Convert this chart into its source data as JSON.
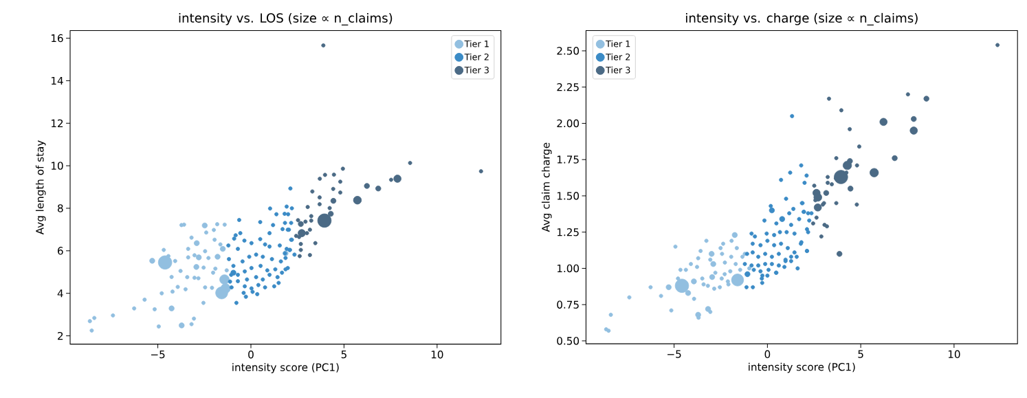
{
  "chart_data": [
    {
      "type": "bubble",
      "title": "intensity vs. LOS (size ∝ n_claims)",
      "xlabel": "intensity score (PC1)",
      "ylabel": "Avg length of stay",
      "xlim": [
        -9.71,
        13.43
      ],
      "ylim": [
        1.61,
        16.36
      ],
      "xticks": [
        {
          "value": -5,
          "label": "−5"
        },
        0,
        5,
        10
      ],
      "yticks": [
        2,
        4,
        6,
        8,
        10,
        12,
        14,
        16
      ],
      "legend": "top right",
      "series": [
        {
          "name": "Tier 1",
          "color": "#92bfe0",
          "x": [
            -8.65,
            -8.41,
            -8.55,
            -7.41,
            -6.27,
            -5.71,
            -5.17,
            -4.79,
            -4.95,
            -4.26,
            -3.72,
            -3.06,
            -3.19,
            -2.55,
            -5.3,
            -4.61,
            -4.68,
            -4.26,
            -3.93,
            -4.21,
            -3.78,
            -3.51,
            -3.73,
            -3.59,
            -3.37,
            -3.19,
            -2.91,
            -2.93,
            -2.8,
            -3.03,
            -2.54,
            -2.48,
            -2.4,
            -1.99,
            -1.81,
            -1.41,
            -2.46,
            -2.28,
            -1.95,
            -1.64,
            -1.51,
            -1.79,
            -3.42,
            -3.03,
            -2.82,
            -2.46,
            -2.09,
            -2.03,
            -1.57,
            -1.42,
            -1.36,
            -1.91,
            -1.3,
            -4.07,
            -4.43,
            -3.37,
            1.86
          ],
          "values": [
            2.69,
            2.84,
            2.25,
            2.96,
            3.29,
            3.7,
            3.25,
            4.0,
            2.44,
            3.29,
            2.49,
            2.81,
            2.55,
            3.55,
            5.53,
            5.45,
            6.04,
            4.77,
            4.3,
            4.08,
            5.05,
            4.19,
            7.21,
            7.23,
            6.09,
            6.62,
            6.36,
            5.24,
            5.69,
            5.79,
            5.21,
            7.19,
            6.86,
            6.98,
            7.25,
            7.23,
            5.98,
            5.66,
            6.52,
            6.3,
            6.09,
            5.72,
            4.76,
            4.73,
            4.71,
            4.28,
            4.26,
            4.97,
            4.02,
            4.65,
            4.23,
            5.16,
            5.08,
            5.52,
            5.75,
            5.69,
            5.88
          ],
          "sizes": [
            0.07,
            0.07,
            0.07,
            0.07,
            0.07,
            0.07,
            0.07,
            0.07,
            0.07,
            0.15,
            0.15,
            0.07,
            0.07,
            0.07,
            0.15,
            1,
            0.07,
            0.07,
            0.07,
            0.07,
            0.07,
            0.07,
            0.07,
            0.07,
            0.07,
            0.07,
            0.15,
            0.15,
            0.15,
            0.07,
            0.07,
            0.15,
            0.07,
            0.07,
            0.07,
            0.07,
            0.07,
            0.07,
            0.07,
            0.07,
            0.15,
            0.15,
            0.07,
            0.07,
            0.07,
            0.07,
            0.07,
            0.07,
            0.8,
            0.5,
            0.5,
            0.07,
            0.07,
            0.07,
            0.07,
            0.07,
            0.15
          ]
        },
        {
          "name": "Tier 2",
          "color": "#3b8bc6",
          "x": [
            -0.78,
            -0.27,
            -0.63,
            0.5,
            1.03,
            2.12,
            1.92,
            2.2,
            1.37,
            1.81,
            1.19,
            1.83,
            1.98,
            1.7,
            1.0,
            -0.57,
            -0.9,
            -0.82,
            -0.35,
            -1.21,
            -0.7,
            0.03,
            0.5,
            0.76,
            1.0,
            1.55,
            2.16,
            2.07,
            1.83,
            -1.18,
            -0.94,
            -0.45,
            -0.09,
            0.28,
            0.64,
            1.13,
            1.61,
            1.98,
            1.67,
            1.31,
            0.88,
            0.52,
            0.03,
            -0.33,
            -0.7,
            -1.06,
            -1.12,
            -0.7,
            -0.21,
            0.28,
            0.64,
            1.0,
            1.43,
            1.49,
            1.25,
            0.76,
            0.4,
            0.03,
            -0.33,
            -0.39,
            0.09,
            0.34,
            -1.04,
            -0.94,
            2.0,
            2.16,
            2.04,
            2.2,
            1.92,
            2.1,
            2.34,
            1.86,
            1.86
          ],
          "values": [
            3.55,
            3.84,
            7.45,
            7.35,
            7.99,
            8.93,
            8.08,
            8.0,
            7.72,
            7.74,
            7.21,
            7.31,
            6.99,
            7.02,
            6.83,
            6.83,
            6.57,
            6.73,
            6.48,
            6.25,
            6.09,
            6.36,
            6.55,
            6.3,
            6.2,
            6.25,
            6.52,
            6.04,
            5.88,
            5.61,
            5.29,
            5.5,
            5.72,
            5.82,
            5.72,
            5.61,
            5.5,
            5.19,
            4.97,
            5.13,
            5.08,
            5.29,
            5.19,
            5.03,
            4.87,
            4.87,
            4.55,
            4.57,
            4.65,
            4.76,
            4.65,
            4.87,
            4.76,
            4.49,
            4.33,
            4.28,
            4.39,
            4.23,
            4.33,
            4.02,
            4.07,
            3.96,
            4.28,
            4.97,
            7.72,
            7.31,
            6.99,
            6.52,
            6.09,
            6.04,
            5.82,
            5.66,
            5.13
          ],
          "sizes": [
            0.07,
            0.07,
            0.07,
            0.07,
            0.07,
            0.07,
            0.07,
            0.07,
            0.07,
            0.07,
            0.07,
            0.07,
            0.07,
            0.07,
            0.07,
            0.07,
            0.07,
            0.07,
            0.07,
            0.07,
            0.07,
            0.07,
            0.07,
            0.07,
            0.07,
            0.07,
            0.07,
            0.07,
            0.07,
            0.07,
            0.07,
            0.07,
            0.07,
            0.07,
            0.07,
            0.07,
            0.07,
            0.07,
            0.07,
            0.07,
            0.07,
            0.07,
            0.07,
            0.07,
            0.07,
            0.07,
            0.07,
            0.07,
            0.07,
            0.07,
            0.07,
            0.07,
            0.07,
            0.07,
            0.07,
            0.07,
            0.07,
            0.07,
            0.07,
            0.07,
            0.07,
            0.07,
            0.07,
            0.15,
            0.07,
            0.07,
            0.07,
            0.07,
            0.07,
            0.07,
            0.07,
            0.07,
            0.07
          ]
        },
        {
          "name": "Tier 3",
          "color": "#4b6a85",
          "x": [
            3.89,
            8.55,
            12.36,
            7.87,
            7.53,
            6.84,
            6.23,
            5.72,
            4.94,
            4.46,
            3.98,
            3.7,
            4.8,
            4.42,
            4.8,
            3.3,
            3.69,
            3.69,
            4.43,
            3.05,
            4.23,
            4.29,
            3.95,
            3.24,
            3.24,
            2.53,
            2.68,
            2.93,
            3.17,
            2.73,
            2.43,
            2.59,
            3.01,
            2.68,
            3.46,
            2.68,
            2.62,
            3.17
          ],
          "values": [
            15.66,
            10.13,
            9.74,
            9.39,
            9.34,
            8.93,
            9.05,
            8.38,
            9.86,
            9.58,
            9.57,
            9.39,
            9.25,
            8.91,
            8.74,
            8.79,
            8.51,
            8.19,
            8.35,
            8.06,
            8.01,
            7.74,
            7.42,
            7.63,
            7.42,
            7.44,
            7.26,
            7.37,
            6.99,
            6.83,
            6.7,
            6.65,
            6.83,
            6.32,
            6.36,
            6.04,
            5.75,
            5.8
          ],
          "sizes": [
            0.07,
            0.07,
            0.07,
            0.3,
            0.07,
            0.15,
            0.15,
            0.35,
            0.07,
            0.07,
            0.07,
            0.07,
            0.07,
            0.07,
            0.07,
            0.07,
            0.07,
            0.07,
            0.15,
            0.07,
            0.07,
            0.15,
            1,
            0.07,
            0.07,
            0.07,
            0.15,
            0.07,
            0.07,
            0.3,
            0.07,
            0.07,
            0.07,
            0.07,
            0.07,
            0.07,
            0.07,
            0.07
          ]
        }
      ]
    },
    {
      "type": "bubble",
      "title": "intensity vs. charge (size ∝ n_claims)",
      "xlabel": "intensity score (PC1)",
      "ylabel": "Avg claim charge",
      "xlim": [
        -9.72,
        13.4
      ],
      "ylim": [
        0.48,
        2.64
      ],
      "xticks": [
        {
          "value": -5,
          "label": "−5"
        },
        0,
        5,
        10
      ],
      "yticks": [
        {
          "value": 0.5,
          "label": "0.50"
        },
        {
          "value": 0.75,
          "label": "0.75"
        },
        {
          "value": 1,
          "label": "1.00"
        },
        {
          "value": 1.25,
          "label": "1.25"
        },
        {
          "value": 1.5,
          "label": "1.50"
        },
        {
          "value": 1.75,
          "label": "1.75"
        },
        {
          "value": 2,
          "label": "2.00"
        },
        {
          "value": 2.25,
          "label": "2.25"
        },
        {
          "value": 2.5,
          "label": "2.50"
        }
      ],
      "legend": "top left",
      "series": [
        {
          "name": "Tier 1",
          "color": "#92bfe0",
          "x": [
            -8.64,
            -8.51,
            -8.39,
            -7.4,
            -6.26,
            -5.7,
            -5.15,
            -4.93,
            -5.29,
            -4.58,
            -4.79,
            -4.66,
            -4.37,
            -4.25,
            -3.93,
            -4.1,
            -3.94,
            -3.77,
            -3.71,
            -3.58,
            -3.71,
            -3.69,
            -3.27,
            -3.18,
            -3.06,
            -3.49,
            -3.42,
            -3.19,
            -3.06,
            -2.99,
            -2.9,
            -2.96,
            -2.79,
            -2.85,
            -2.55,
            -2.51,
            -2.43,
            -2.37,
            -2.28,
            -2.45,
            -2.12,
            -2.09,
            -2.29,
            -1.99,
            -1.92,
            -1.75,
            -1.94,
            -1.64,
            -1.7,
            -1.6,
            -1.46,
            -1.34,
            -1.21,
            -0.97
          ],
          "values": [
            0.58,
            0.57,
            0.68,
            0.8,
            0.87,
            0.81,
            0.71,
            1.15,
            0.87,
            0.88,
            0.93,
            0.99,
            0.99,
            0.83,
            0.79,
            1.03,
            0.91,
            1.01,
            1.07,
            1.12,
            0.68,
            0.66,
            1.19,
            0.72,
            0.7,
            0.93,
            0.89,
            0.88,
            1.06,
            1.1,
            1.03,
            0.94,
            0.97,
            0.86,
            0.87,
            1.14,
            1.1,
            1.17,
            1.04,
            0.93,
            0.91,
            0.89,
            0.96,
            0.98,
            1.19,
            1.23,
            1.08,
            1.14,
            1.03,
            0.92,
            0.99,
            1.08,
            1.1,
            1.0
          ],
          "sizes": [
            0.07,
            0.07,
            0.07,
            0.07,
            0.07,
            0.07,
            0.07,
            0.07,
            0.15,
            1,
            0.07,
            0.07,
            0.07,
            0.15,
            0.07,
            0.07,
            0.15,
            0.07,
            0.07,
            0.07,
            0.15,
            0.07,
            0.07,
            0.15,
            0.07,
            0.07,
            0.07,
            0.07,
            0.07,
            0.15,
            0.15,
            0.15,
            0.07,
            0.07,
            0.07,
            0.07,
            0.07,
            0.07,
            0.07,
            0.07,
            0.07,
            0.07,
            0.07,
            0.07,
            0.07,
            0.15,
            0.07,
            0.07,
            0.07,
            0.8,
            0.07,
            0.07,
            0.07,
            0.07
          ]
        },
        {
          "name": "Tier 2",
          "color": "#3b8bc6",
          "x": [
            1.32,
            1.81,
            1.22,
            2.1,
            1.99,
            0.73,
            1.0,
            1.85,
            0.18,
            0.24,
            1.39,
            1.17,
            1.96,
            -0.16,
            0.79,
            1.7,
            0.48,
            1.27,
            2.12,
            -0.85,
            -0.67,
            -0.04,
            0.36,
            0.67,
            1.03,
            1.45,
            1.79,
            -0.79,
            -0.37,
            0.0,
            0.36,
            0.73,
            1.09,
            1.45,
            2.12,
            -1.09,
            -0.79,
            -0.49,
            -0.12,
            0.24,
            0.61,
            0.97,
            1.27,
            1.57,
            -1.21,
            -0.85,
            -0.49,
            -0.12,
            0.24,
            0.61,
            0.97,
            1.27,
            -0.73,
            -0.37,
            0.06,
            0.48,
            0.91,
            -1.07,
            -0.27,
            0.0,
            0.46,
            1.62,
            -1.12,
            -0.78,
            -0.28,
            -0.3,
            1.88,
            1.94,
            2.18,
            2.36,
            2.24,
            2.18,
            1.82,
            2.12
          ],
          "values": [
            2.05,
            1.71,
            1.66,
            1.64,
            1.59,
            1.61,
            1.48,
            1.45,
            1.43,
            1.4,
            1.41,
            1.38,
            1.39,
            1.33,
            1.34,
            1.34,
            1.31,
            1.3,
            1.27,
            1.24,
            1.22,
            1.24,
            1.23,
            1.25,
            1.25,
            1.24,
            1.17,
            1.17,
            1.16,
            1.19,
            1.16,
            1.17,
            1.14,
            1.11,
            1.12,
            1.1,
            1.11,
            1.08,
            1.1,
            1.08,
            1.1,
            1.06,
            1.08,
            1.08,
            1.03,
            1.02,
            1.02,
            1.03,
            1.03,
            1.02,
            1.05,
            1.05,
            0.99,
            0.98,
            0.99,
            0.97,
            1.01,
            0.96,
            0.95,
            0.95,
            0.97,
            1.0,
            0.87,
            0.87,
            0.9,
            0.93,
            1.45,
            1.39,
            1.38,
            1.38,
            1.33,
            1.25,
            1.18,
            1.12
          ],
          "sizes": [
            0.07,
            0.07,
            0.07,
            0.07,
            0.07,
            0.07,
            0.07,
            0.07,
            0.07,
            0.15,
            0.07,
            0.07,
            0.07,
            0.07,
            0.15,
            0.07,
            0.07,
            0.07,
            0.07,
            0.07,
            0.07,
            0.07,
            0.07,
            0.07,
            0.07,
            0.07,
            0.07,
            0.07,
            0.07,
            0.07,
            0.07,
            0.07,
            0.07,
            0.07,
            0.07,
            0.07,
            0.07,
            0.07,
            0.07,
            0.07,
            0.07,
            0.07,
            0.07,
            0.07,
            0.07,
            0.07,
            0.07,
            0.07,
            0.07,
            0.07,
            0.07,
            0.07,
            0.07,
            0.07,
            0.07,
            0.07,
            0.07,
            0.15,
            0.07,
            0.07,
            0.07,
            0.07,
            0.07,
            0.07,
            0.07,
            0.07,
            0.07,
            0.07,
            0.07,
            0.07,
            0.07,
            0.07,
            0.07,
            0.07
          ]
        },
        {
          "name": "Tier 3",
          "color": "#4b6a85",
          "x": [
            12.33,
            7.53,
            8.52,
            3.3,
            3.96,
            7.84,
            6.22,
            7.84,
            4.41,
            4.92,
            6.82,
            3.69,
            4.42,
            4.28,
            4.8,
            5.72,
            3.94,
            4.23,
            3.67,
            3.23,
            3.23,
            3.45,
            2.51,
            4.45,
            2.63,
            3.15,
            2.7,
            2.57,
            3.03,
            3.69,
            4.79,
            2.7,
            2.97,
            2.63,
            2.45,
            3.06,
            3.19,
            2.89,
            3.86
          ],
          "values": [
            2.54,
            2.2,
            2.17,
            2.17,
            2.09,
            2.03,
            2.01,
            1.95,
            1.96,
            1.84,
            1.76,
            1.76,
            1.74,
            1.71,
            1.71,
            1.66,
            1.63,
            1.66,
            1.62,
            1.63,
            1.59,
            1.58,
            1.57,
            1.55,
            1.52,
            1.52,
            1.49,
            1.47,
            1.45,
            1.45,
            1.44,
            1.42,
            1.44,
            1.35,
            1.31,
            1.3,
            1.29,
            1.22,
            1.1
          ],
          "sizes": [
            0.07,
            0.07,
            0.15,
            0.07,
            0.07,
            0.15,
            0.3,
            0.3,
            0.07,
            0.07,
            0.15,
            0.07,
            0.15,
            0.4,
            0.07,
            0.4,
            1,
            0.07,
            0.07,
            0.07,
            0.07,
            0.07,
            0.07,
            0.15,
            0.3,
            0.15,
            0.35,
            0.07,
            0.07,
            0.07,
            0.07,
            0.3,
            0.07,
            0.07,
            0.07,
            0.07,
            0.07,
            0.07,
            0.15
          ]
        }
      ]
    }
  ]
}
